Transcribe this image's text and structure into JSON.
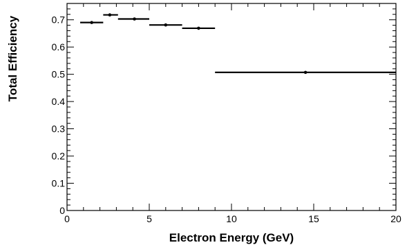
{
  "chart_data": {
    "type": "scatter",
    "xlabel": "Electron Energy (GeV)",
    "ylabel": "Total Efficiency",
    "xlim": [
      0,
      20
    ],
    "ylim": [
      0,
      0.76
    ],
    "x_ticks": [
      0,
      5,
      10,
      15,
      20
    ],
    "x_tick_labels": [
      "0",
      "5",
      "10",
      "15",
      "20"
    ],
    "y_ticks": [
      0,
      0.1,
      0.2,
      0.3,
      0.4,
      0.5,
      0.6,
      0.7
    ],
    "y_tick_labels": [
      "0",
      "0.1",
      "0.2",
      "0.3",
      "0.4",
      "0.5",
      "0.6",
      "0.7"
    ],
    "grid": false,
    "marker_color": "#000000",
    "points": [
      {
        "x": 1.5,
        "x_low": 0.8,
        "x_high": 2.2,
        "y": 0.69
      },
      {
        "x": 2.6,
        "x_low": 2.2,
        "x_high": 3.1,
        "y": 0.718
      },
      {
        "x": 4.1,
        "x_low": 3.1,
        "x_high": 5.0,
        "y": 0.703
      },
      {
        "x": 6.0,
        "x_low": 5.0,
        "x_high": 7.0,
        "y": 0.681
      },
      {
        "x": 8.0,
        "x_low": 7.0,
        "x_high": 9.0,
        "y": 0.669
      },
      {
        "x": 14.5,
        "x_low": 9.0,
        "x_high": 20.0,
        "y": 0.507
      }
    ]
  }
}
